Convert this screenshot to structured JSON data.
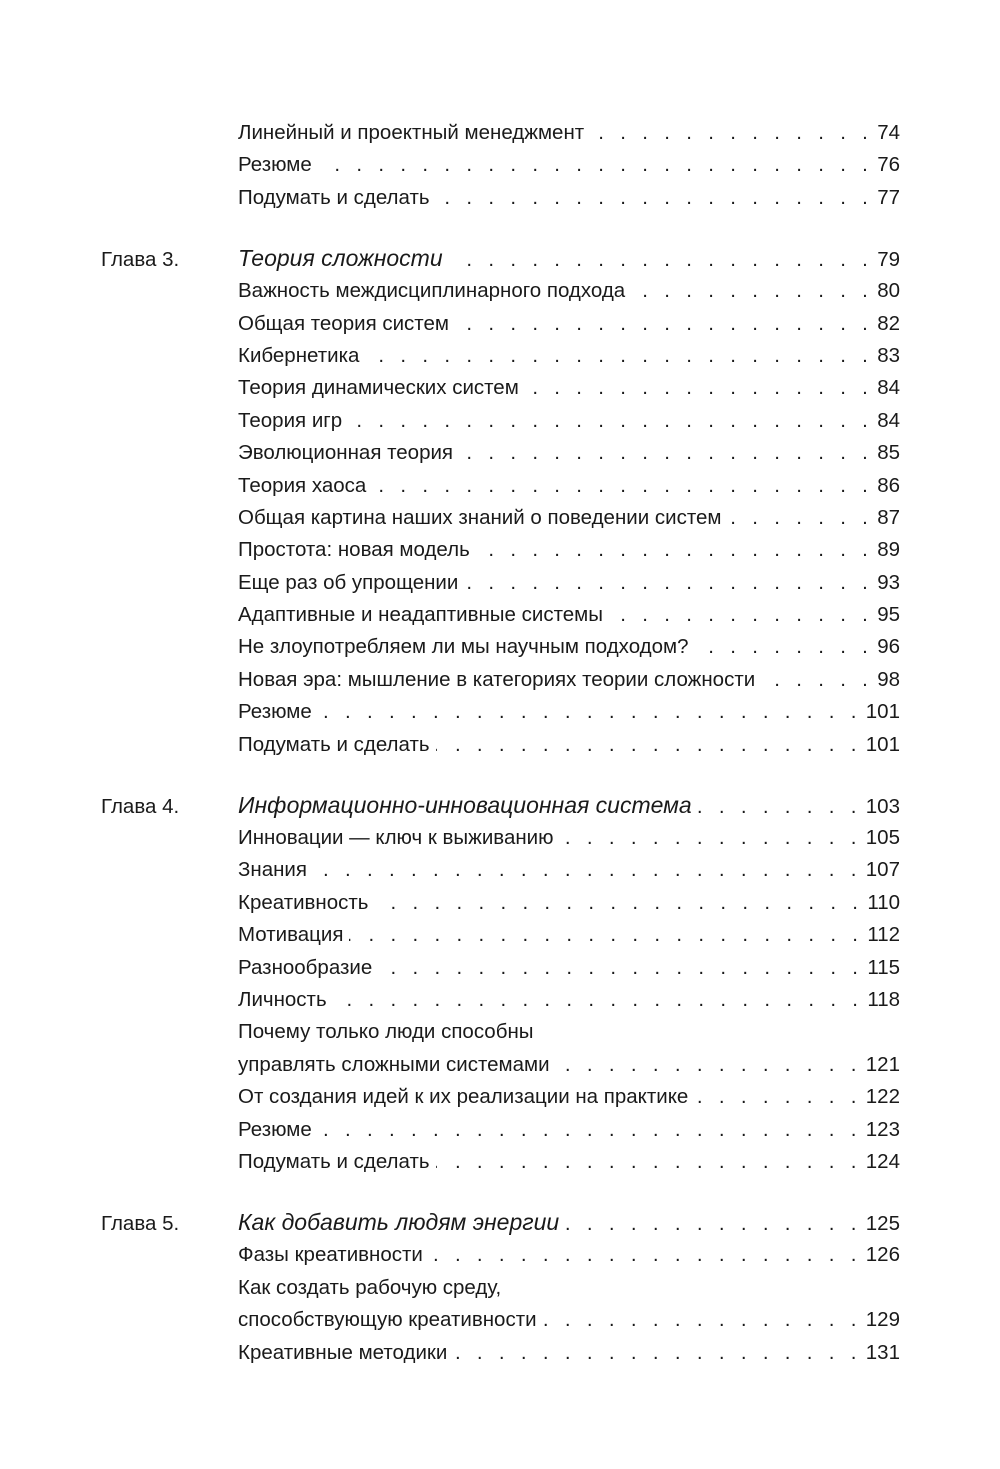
{
  "groups": [
    {
      "chapter_label": "",
      "chapter_title": "",
      "chapter_page": "",
      "entries": [
        {
          "lines": [
            "Линейный и проектный менеджмент"
          ],
          "page": "74"
        },
        {
          "lines": [
            "Резюме"
          ],
          "page": "76"
        },
        {
          "lines": [
            "Подумать и сделать"
          ],
          "page": "77"
        }
      ]
    },
    {
      "chapter_label": "Глава 3.",
      "chapter_title": "Теория сложности",
      "chapter_page": "79",
      "entries": [
        {
          "lines": [
            "Важность междисциплинарного подхода"
          ],
          "page": "80"
        },
        {
          "lines": [
            "Общая теория систем"
          ],
          "page": "82"
        },
        {
          "lines": [
            "Кибернетика"
          ],
          "page": "83"
        },
        {
          "lines": [
            "Теория динамических систем"
          ],
          "page": "84"
        },
        {
          "lines": [
            "Теория игр"
          ],
          "page": "84"
        },
        {
          "lines": [
            "Эволюционная теория"
          ],
          "page": "85"
        },
        {
          "lines": [
            "Теория хаоса"
          ],
          "page": "86"
        },
        {
          "lines": [
            "Общая картина наших знаний о поведении систем"
          ],
          "page": "87"
        },
        {
          "lines": [
            "Простота: новая модель"
          ],
          "page": "89"
        },
        {
          "lines": [
            "Еще раз об упрощении"
          ],
          "page": "93"
        },
        {
          "lines": [
            "Адаптивные и неадаптивные системы"
          ],
          "page": "95"
        },
        {
          "lines": [
            "Не злоупотребляем ли мы научным подходом?"
          ],
          "page": "96"
        },
        {
          "lines": [
            "Новая эра: мышление в категориях теории сложности"
          ],
          "page": "98"
        },
        {
          "lines": [
            "Резюме"
          ],
          "page": "101"
        },
        {
          "lines": [
            "Подумать и сделать"
          ],
          "page": "101"
        }
      ]
    },
    {
      "chapter_label": "Глава 4.",
      "chapter_title": "Информационно-инновационная система",
      "chapter_page": "103",
      "entries": [
        {
          "lines": [
            "Инновации — ключ к выживанию"
          ],
          "page": "105"
        },
        {
          "lines": [
            "Знания"
          ],
          "page": "107"
        },
        {
          "lines": [
            "Креативность"
          ],
          "page": "110"
        },
        {
          "lines": [
            "Мотивация"
          ],
          "page": "112"
        },
        {
          "lines": [
            "Разнообразие"
          ],
          "page": "115"
        },
        {
          "lines": [
            "Личность"
          ],
          "page": "118"
        },
        {
          "lines": [
            "Почему только люди способны",
            "управлять сложными системами"
          ],
          "page": "121"
        },
        {
          "lines": [
            "От создания идей к их реализации на практике"
          ],
          "page": "122"
        },
        {
          "lines": [
            "Резюме"
          ],
          "page": "123"
        },
        {
          "lines": [
            "Подумать и сделать"
          ],
          "page": "124"
        }
      ]
    },
    {
      "chapter_label": "Глава 5.",
      "chapter_title": "Как добавить людям энергии",
      "chapter_page": "125",
      "entries": [
        {
          "lines": [
            "Фазы креативности"
          ],
          "page": "126"
        },
        {
          "lines": [
            "Как создать рабочую среду,",
            "способствующую креативности"
          ],
          "page": "129"
        },
        {
          "lines": [
            "Креативные методики"
          ],
          "page": "131"
        }
      ]
    }
  ]
}
